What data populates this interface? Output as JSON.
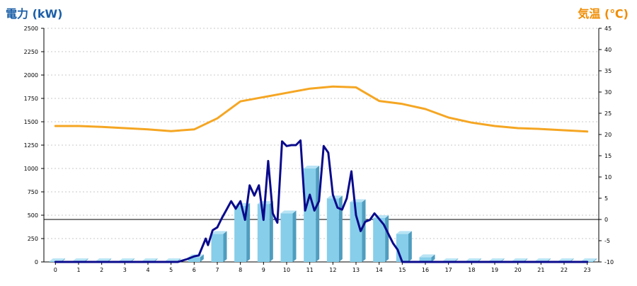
{
  "chart_data": {
    "type": "bar",
    "y_left_label": "電力 (kW)",
    "y_right_label": "気温 (℃)",
    "categories": [
      "0",
      "1",
      "2",
      "3",
      "4",
      "5",
      "6",
      "7",
      "8",
      "9",
      "10",
      "11",
      "12",
      "13",
      "14",
      "15",
      "16",
      "17",
      "18",
      "19",
      "20",
      "21",
      "22",
      "23"
    ],
    "y_left_ticks": [
      "0",
      "250",
      "500",
      "750",
      "1000",
      "1250",
      "1500",
      "1750",
      "2000",
      "2250",
      "2500"
    ],
    "y_right_ticks": [
      "-10",
      "-5",
      "0",
      "5",
      "10",
      "15",
      "20",
      "25",
      "30",
      "35",
      "40",
      "45"
    ],
    "ylim_left": [
      0,
      2500
    ],
    "ylim_right": [
      -10,
      45
    ],
    "grid": true,
    "colors": {
      "bar": "#87ceea",
      "bar_side": "#4f9dbf",
      "bar_top": "#b8e4f5",
      "power_line": "#0a0a8c",
      "temperature_line": "#f5a623",
      "left_title": "#1b5fa8",
      "right_title": "#f08c00"
    },
    "series": [
      {
        "kind": "bar",
        "values": [
          0,
          0,
          0,
          0,
          0,
          0,
          50,
          300,
          600,
          620,
          520,
          1000,
          680,
          640,
          470,
          300,
          50,
          0,
          0,
          0,
          0,
          0,
          0,
          0
        ]
      },
      {
        "kind": "line",
        "axis": "left",
        "x": [
          0,
          1,
          2,
          3,
          4,
          5,
          5.3,
          5.7,
          6.0,
          6.2,
          6.5,
          6.6,
          6.8,
          7.0,
          7.2,
          7.4,
          7.6,
          7.8,
          8.0,
          8.2,
          8.4,
          8.6,
          8.8,
          9.0,
          9.2,
          9.4,
          9.6,
          9.8,
          10.0,
          10.2,
          10.4,
          10.6,
          10.8,
          11.0,
          11.2,
          11.4,
          11.6,
          11.8,
          12.0,
          12.2,
          12.4,
          12.6,
          12.8,
          13.0,
          13.2,
          13.4,
          13.6,
          13.8,
          14.0,
          14.2,
          14.4,
          14.6,
          14.8,
          15.0,
          15.2,
          15.4,
          15.6,
          15.8,
          16.0,
          17,
          18,
          19,
          20,
          21,
          22,
          23
        ],
        "values": [
          0,
          0,
          0,
          0,
          0,
          0,
          0,
          30,
          60,
          70,
          250,
          180,
          340,
          370,
          470,
          560,
          650,
          570,
          650,
          450,
          820,
          710,
          820,
          450,
          1080,
          520,
          420,
          1290,
          1240,
          1250,
          1250,
          1300,
          550,
          720,
          550,
          650,
          1240,
          1170,
          720,
          580,
          560,
          680,
          970,
          500,
          330,
          430,
          450,
          520,
          460,
          400,
          300,
          200,
          130,
          0,
          0,
          0,
          0,
          0,
          0,
          0,
          0,
          0,
          0,
          0,
          0,
          0
        ]
      },
      {
        "kind": "line",
        "axis": "right",
        "x": [
          0,
          1,
          2,
          3,
          4,
          5,
          6,
          7,
          8,
          9,
          10,
          11,
          12,
          13,
          14,
          15,
          16,
          17,
          18,
          19,
          20,
          21,
          22,
          23
        ],
        "values": [
          22,
          22,
          21.8,
          21.5,
          21.2,
          20.8,
          21.2,
          23.8,
          27.8,
          28.8,
          29.8,
          30.8,
          31.3,
          31.1,
          27.9,
          27.2,
          26,
          24,
          22.8,
          22,
          21.5,
          21.3,
          21,
          20.7
        ]
      }
    ]
  }
}
